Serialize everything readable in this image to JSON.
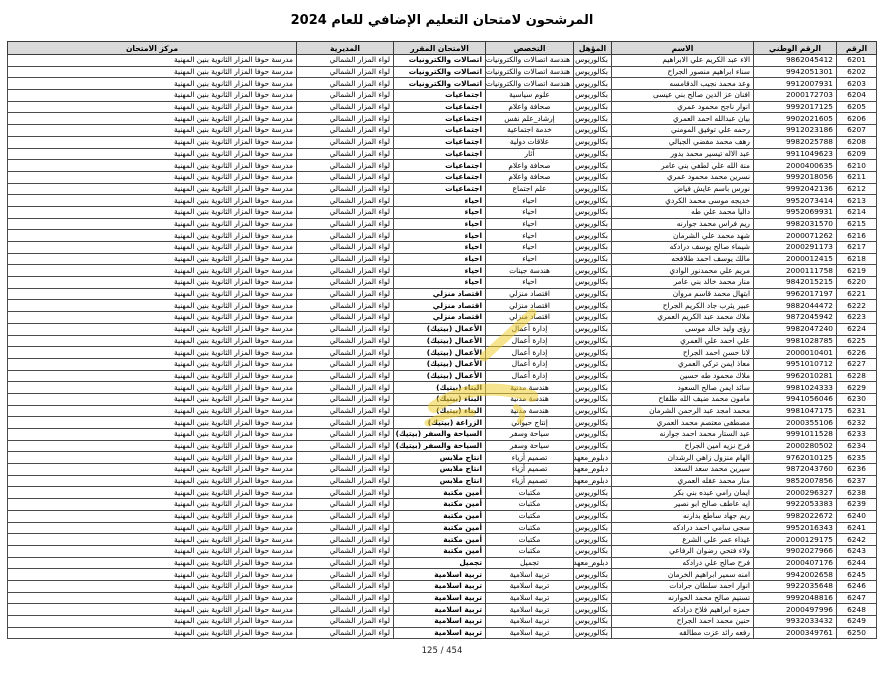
{
  "title": "المرشحون لامتحان التعليم الإضافي للعام 2024",
  "page_indicator": "125 / 454",
  "watermark_color": "#f2cf35",
  "table": {
    "headers": [
      "الرقم",
      "الرقم الوطني",
      "الاسم",
      "المؤهل",
      "التخصص",
      "الامتحان المقرر",
      "المديرية",
      "مركز الامتحان"
    ],
    "common": {
      "directorate": "لواء المزار الشمالي",
      "exam_center": "مدرسة حوفا المزار الثانوية بنين المهنية"
    },
    "rows": [
      [
        "6201",
        "9862045412",
        "الاء عبد الكريم علي الابراهيم",
        "بكالوريوس",
        "هندسة اتصالات والكترونيات",
        "اتصالات والكترونيات"
      ],
      [
        "6202",
        "9942051301",
        "سناء ابراهيم منصور الجراح",
        "بكالوريوس",
        "هندسة اتصالات والكترونيات",
        "اتصالات والكترونيات"
      ],
      [
        "6203",
        "9912007931",
        "وعد محمد نجيب الدقامسه",
        "بكالوريوس",
        "هندسة اتصالات والكترونيات",
        "اتصالات والكترونيات"
      ],
      [
        "6204",
        "2000172703",
        "افنان عز الدين صالح بني عيسى",
        "بكالوريوس",
        "علوم سياسية",
        "اجتماعيات"
      ],
      [
        "6205",
        "9992017125",
        "انوار ناجح محمود عمري",
        "بكالوريوس",
        "صحافة واعلام",
        "اجتماعيات"
      ],
      [
        "6206",
        "9902021605",
        "بيان عبدالله احمد العمري",
        "بكالوريوس",
        "إرشاد_علم نفس",
        "اجتماعيات"
      ],
      [
        "6207",
        "9912023186",
        "رحمه علي توفيق المومني",
        "بكالوريوس",
        "خدمة اجتماعية",
        "اجتماعيات"
      ],
      [
        "6208",
        "9982025788",
        "رهف محمد مفضي الجبالي",
        "بكالوريوس",
        "علاقات دولية",
        "اجتماعيات"
      ],
      [
        "6209",
        "9911049623",
        "عبد الاله تيسير محمد بدور",
        "بكالوريوس",
        "آثار",
        "اجتماعيات"
      ],
      [
        "6210",
        "2000400635",
        "منة الله علي لطفي بني عامر",
        "بكالوريوس",
        "صحافة واعلام",
        "اجتماعيات"
      ],
      [
        "6211",
        "9992018056",
        "نسرين محمد محمود عمري",
        "بكالوريوس",
        "صحافة واعلام",
        "اجتماعيات"
      ],
      [
        "6212",
        "9992042136",
        "نورس باسم عايش فياض",
        "بكالوريوس",
        "علم اجتماع",
        "اجتماعيات"
      ],
      [
        "6213",
        "9952073414",
        "خديجه موسى محمد الكردي",
        "بكالوريوس",
        "احياء",
        "احياء"
      ],
      [
        "6214",
        "9952069931",
        "داليا محمد علي طه",
        "بكالوريوس",
        "احياء",
        "احياء"
      ],
      [
        "6215",
        "9982031570",
        "ريم فراس محمد جوارنه",
        "بكالوريوس",
        "احياء",
        "احياء"
      ],
      [
        "6216",
        "2000071262",
        "شهد محمد علي الشرمان",
        "بكالوريوس",
        "احياء",
        "احياء"
      ],
      [
        "6217",
        "2000291173",
        "شيماء صالح يوسف درادكه",
        "بكالوريوس",
        "احياء",
        "احياء"
      ],
      [
        "6218",
        "2000012415",
        "مالك يوسف احمد طلافحه",
        "بكالوريوس",
        "احياء",
        "احياء"
      ],
      [
        "6219",
        "2000111758",
        "مريم علي محمدنور الوادي",
        "بكالوريوس",
        "هندسة جينات",
        "احياء"
      ],
      [
        "6220",
        "9842015215",
        "منار محمد خالد بني عامر",
        "بكالوريوس",
        "احياء",
        "احياء"
      ],
      [
        "6221",
        "9962017197",
        "ابتهال محمد قاسم مروان",
        "بكالوريوس",
        "اقتصاد منزلي",
        "اقتصاد منزلي"
      ],
      [
        "6222",
        "9882044472",
        "عبير يثرب جاد الكريم الجراح",
        "بكالوريوس",
        "اقتصاد منزلي",
        "اقتصاد منزلي"
      ],
      [
        "6223",
        "9872045942",
        "ملاك محمد عبد الكريم العمري",
        "بكالوريوس",
        "اقتصاد منزلي",
        "اقتصاد منزلي"
      ],
      [
        "6224",
        "9982047240",
        "رؤى وليد خالد موسى",
        "بكالوريوس",
        "إدارة أعمال",
        "الأعمال (بيتيك)"
      ],
      [
        "6225",
        "9981028785",
        "علي احمد علي العمري",
        "بكالوريوس",
        "إدارة أعمال",
        "الأعمال (بيتيك)"
      ],
      [
        "6226",
        "2000010401",
        "لانا حسن احمد الجراح",
        "بكالوريوس",
        "إدارة أعمال",
        "الأعمال (بيتيك)"
      ],
      [
        "6227",
        "9951010712",
        "معاذ ايمن تركي العمري",
        "بكالوريوس",
        "إدارة أعمال",
        "الأعمال (بيتيك)"
      ],
      [
        "6228",
        "9962010281",
        "ملاك محمود طه حسين",
        "بكالوريوس",
        "إدارة أعمال",
        "الأعمال (بيتيك)"
      ],
      [
        "6229",
        "9981024333",
        "سائد ايمن صالح السعود",
        "بكالوريوس",
        "هندسة مدنية",
        "البناء (بيتيك)"
      ],
      [
        "6230",
        "9941056046",
        "مامون محمد ضيف الله طلفاح",
        "بكالوريوس",
        "هندسة مدنية",
        "البناء (بيتيك)"
      ],
      [
        "6231",
        "9981047175",
        "محمد امجد عبد الرحمن الشرمان",
        "بكالوريوس",
        "هندسة مدنية",
        "البناء (بيتيك)"
      ],
      [
        "6232",
        "2000355106",
        "مصطفى معتصم محمد العمري",
        "بكالوريوس",
        "إنتاج حيواني",
        "الزراعة (بيتيك)"
      ],
      [
        "6233",
        "9991011528",
        "عبد الستار محمد احمد جوارنه",
        "بكالوريوس",
        "سياحة وسفر",
        "السياحة والسفر (بيتيك)"
      ],
      [
        "6234",
        "2000280502",
        "فرح نزيه امين الجراح",
        "بكالوريوس",
        "سياحة وسفر",
        "السياحة والسفر (بيتيك)"
      ],
      [
        "6235",
        "9762010125",
        "الهام منزول زاهي الرشدان",
        "دبلوم_معهد",
        "تصميم أزياء",
        "انتاج ملابس"
      ],
      [
        "6236",
        "9872043760",
        "سيرين محمد سعد السعد",
        "دبلوم_معهد",
        "تصميم أزياء",
        "انتاج ملابس"
      ],
      [
        "6237",
        "9852007856",
        "منار محمد عقله العمري",
        "دبلوم_معهد",
        "تصميم أزياء",
        "انتاج ملابس"
      ],
      [
        "6238",
        "2000296327",
        "ايمان رامي عبده بني بكر",
        "بكالوريوس",
        "مكتبات",
        "أمين مكتبة"
      ],
      [
        "6239",
        "9922053383",
        "ايه عاطف صالح ابو نصير",
        "بكالوريوس",
        "مكتبات",
        "أمين مكتبة"
      ],
      [
        "6240",
        "9982022672",
        "ريم جهاد ساطع بدارنه",
        "بكالوريوس",
        "مكتبات",
        "أمين مكتبة"
      ],
      [
        "6241",
        "9952016343",
        "سجى سامي احمد درادكه",
        "بكالوريوس",
        "مكتبات",
        "أمين مكتبة"
      ],
      [
        "6242",
        "2000129175",
        "غيداء عمر علي الشرع",
        "بكالوريوس",
        "مكتبات",
        "أمين مكتبة"
      ],
      [
        "6243",
        "9902027966",
        "ولاء فتحي رضوان الرفاعي",
        "بكالوريوس",
        "مكتبات",
        "أمين مكتبة"
      ],
      [
        "6244",
        "2000407176",
        "فرح صالح علي درادكه",
        "دبلوم_معهد",
        "تجميل",
        "تجميل"
      ],
      [
        "6245",
        "9942002658",
        "امنه سمير ابراهيم الخرمان",
        "بكالوريوس",
        "تربية اسلامية",
        "تربية اسلامية"
      ],
      [
        "6246",
        "9922035648",
        "انوار احمد سلطان جرادات",
        "بكالوريوس",
        "تربية اسلامية",
        "تربية اسلامية"
      ],
      [
        "6247",
        "9992048816",
        "تسنيم صالح محمد الحوارنه",
        "بكالوريوس",
        "تربية اسلامية",
        "تربية اسلامية"
      ],
      [
        "6248",
        "2000497996",
        "حمزه ابراهيم فلاح درادكه",
        "بكالوريوس",
        "تربية اسلامية",
        "تربية اسلامية"
      ],
      [
        "6249",
        "9932033432",
        "حنين محمد احمد الجراح",
        "بكالوريوس",
        "تربية اسلامية",
        "تربية اسلامية"
      ],
      [
        "6250",
        "2000349761",
        "رفعه رائد عزت مطالقه",
        "بكالوريوس",
        "تربية اسلامية",
        "تربية اسلامية"
      ]
    ]
  }
}
